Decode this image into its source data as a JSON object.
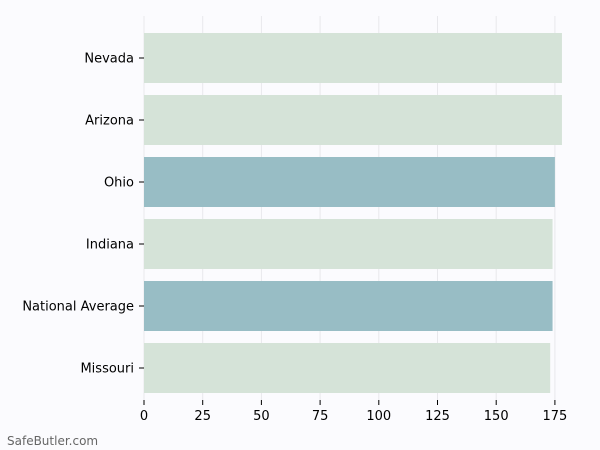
{
  "chart_data": {
    "type": "bar",
    "orientation": "horizontal",
    "categories": [
      "Nevada",
      "Arizona",
      "Ohio",
      "Indiana",
      "National Average",
      "Missouri"
    ],
    "values": [
      178,
      178,
      175,
      174,
      174,
      173
    ],
    "highlighted": [
      false,
      false,
      true,
      false,
      true,
      false
    ],
    "xlim": [
      0,
      180
    ],
    "xticks": [
      0,
      25,
      50,
      75,
      100,
      125,
      150,
      175
    ],
    "grid": true,
    "title": "",
    "xlabel": "",
    "ylabel": ""
  },
  "colors": {
    "bar": "#d5e3d8",
    "bar_highlight": "#98bdc5",
    "grid": "#e8e8ec",
    "axis": "#000000",
    "background": "#fbfbfe"
  },
  "watermark": "SafeButler.com"
}
